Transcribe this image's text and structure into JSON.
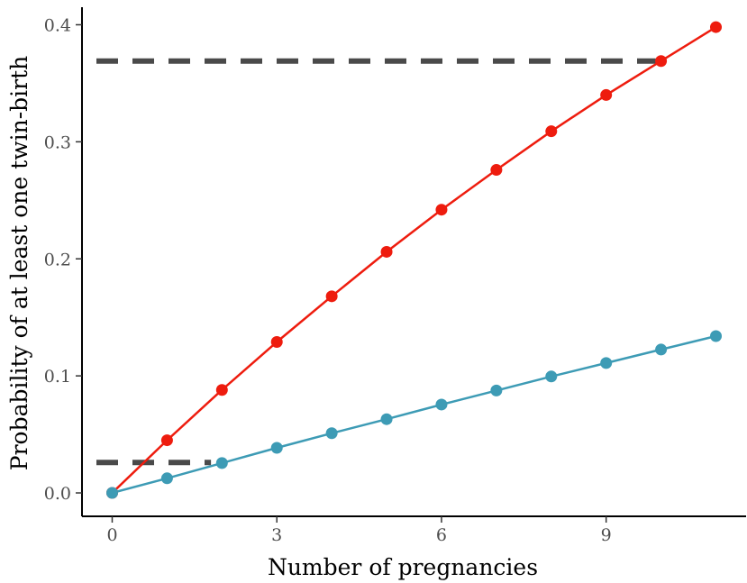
{
  "chart_data": {
    "type": "line",
    "title": "",
    "xlabel": "Number of pregnancies",
    "ylabel": "Probability of at least one twin-birth",
    "xlim": [
      -0.55,
      11.55
    ],
    "ylim": [
      -0.02,
      0.415
    ],
    "x_ticks": [
      0,
      3,
      6,
      9
    ],
    "x_tick_labels": [
      "0",
      "3",
      "6",
      "9"
    ],
    "y_ticks": [
      0.0,
      0.1,
      0.2,
      0.3,
      0.4
    ],
    "y_tick_labels": [
      "0.0",
      "0.1",
      "0.2",
      "0.3",
      "0.4"
    ],
    "grid": false,
    "legend": "none",
    "x": [
      0,
      1,
      2,
      3,
      4,
      5,
      6,
      7,
      8,
      9,
      10,
      11
    ],
    "series": [
      {
        "color": "#ee1c0e",
        "values": [
          0.0,
          0.045,
          0.088,
          0.129,
          0.168,
          0.206,
          0.242,
          0.276,
          0.309,
          0.34,
          0.369,
          0.398
        ]
      },
      {
        "color": "#3d9bb5",
        "values": [
          0.0,
          0.0125,
          0.0255,
          0.0385,
          0.051,
          0.063,
          0.0755,
          0.0875,
          0.0995,
          0.111,
          0.1225,
          0.134
        ]
      }
    ],
    "reference_lines": [
      {
        "y": 0.369,
        "x_from": -0.55,
        "x_to": 9.9,
        "color": "#4a4a4a",
        "style": "dashed"
      },
      {
        "y": 0.026,
        "x_from": -0.55,
        "x_to": 1.8,
        "color": "#4a4a4a",
        "style": "dashed"
      }
    ]
  }
}
